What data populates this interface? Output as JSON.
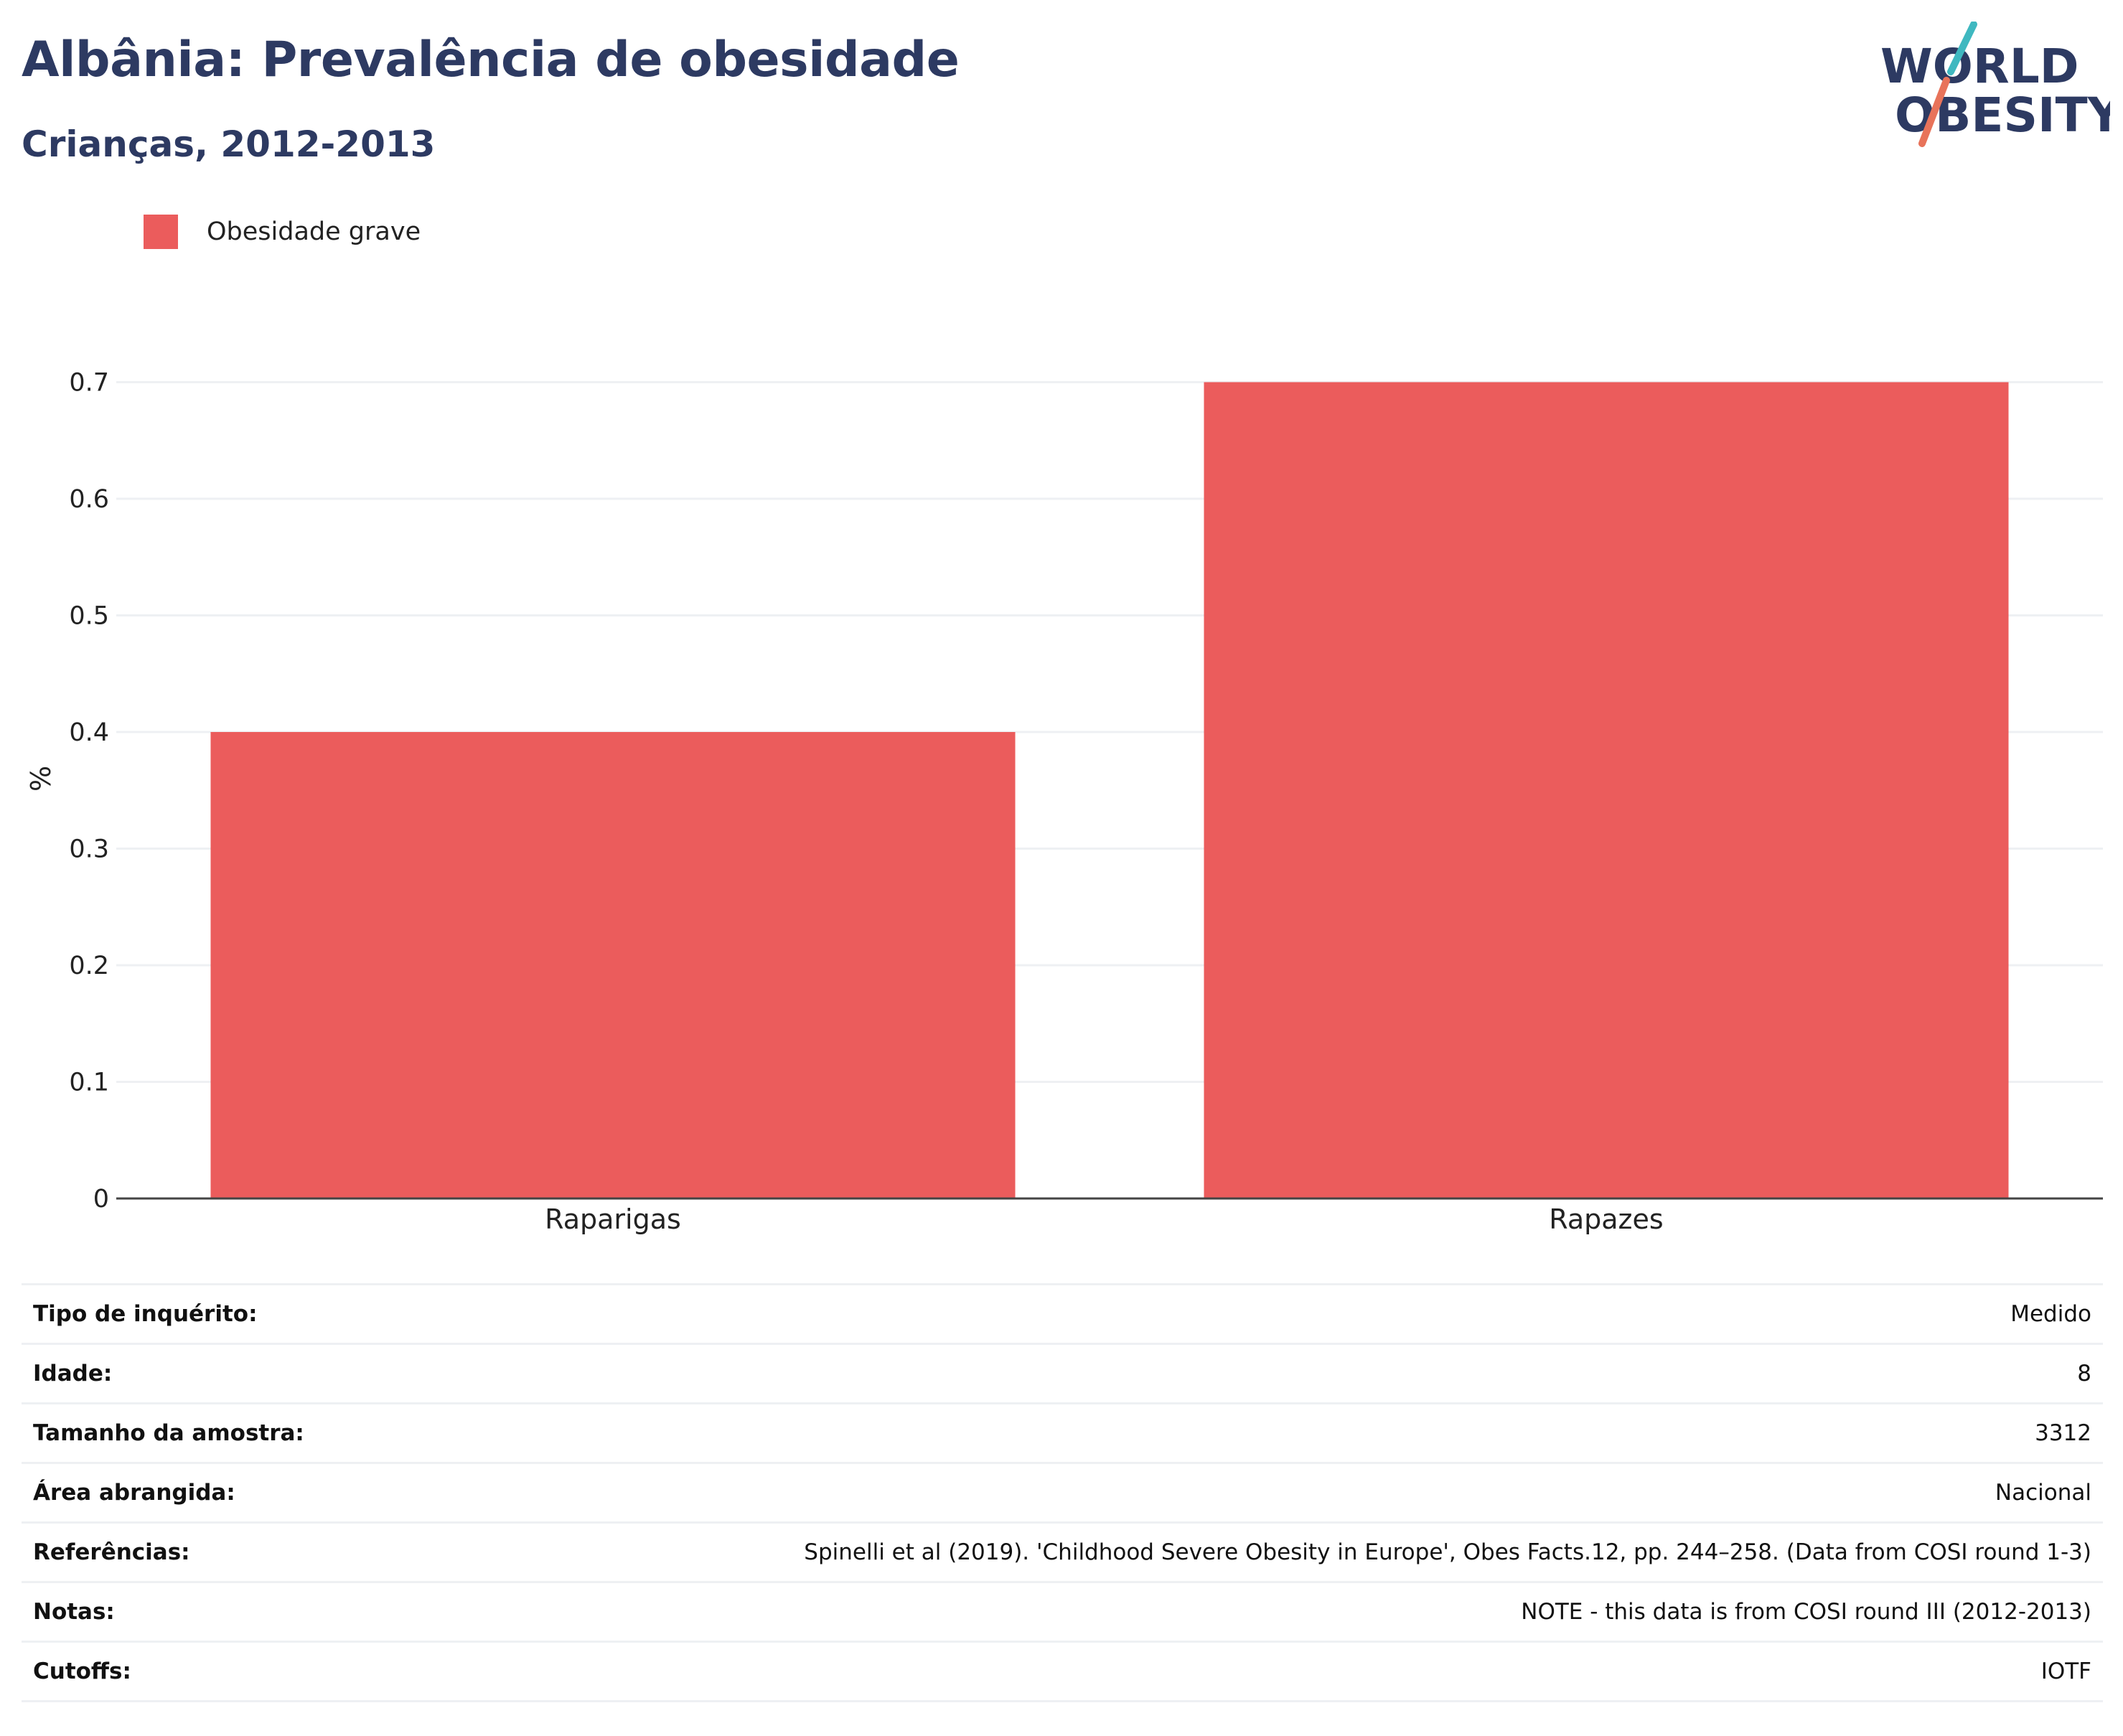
{
  "header": {
    "title": "Albânia: Prevalência de obesidade",
    "subtitle": "Crianças, 2012-2013"
  },
  "logo": {
    "line1": "WORLD",
    "line2": "OBESITY"
  },
  "colors": {
    "bar": "#eb5c5c",
    "title": "#2d3a62",
    "logo_teal": "#3fb8c0",
    "logo_coral": "#e8735a",
    "grid": "#eef0f3"
  },
  "chart_data": {
    "type": "bar",
    "categories": [
      "Raparigas",
      "Rapazes"
    ],
    "series": [
      {
        "name": "Obesidade grave",
        "values": [
          0.4,
          0.7
        ]
      }
    ],
    "ylabel": "%",
    "ylim": [
      0,
      0.72
    ],
    "yticks": [
      "0",
      "0.1",
      "0.2",
      "0.3",
      "0.4",
      "0.5",
      "0.6",
      "0.7"
    ],
    "grid": true,
    "legend": "top-left"
  },
  "info": [
    {
      "key": "Tipo de inquérito:",
      "value": "Medido"
    },
    {
      "key": "Idade:",
      "value": "8"
    },
    {
      "key": "Tamanho da amostra:",
      "value": "3312"
    },
    {
      "key": "Área abrangida:",
      "value": "Nacional"
    },
    {
      "key": "Referências:",
      "value": "Spinelli et al (2019). 'Childhood Severe Obesity in Europe', Obes Facts.12, pp. 244–258. (Data from COSI round 1-3)"
    },
    {
      "key": "Notas:",
      "value": "NOTE - this data is from COSI round III (2012-2013)"
    },
    {
      "key": "Cutoffs:",
      "value": "IOTF"
    }
  ]
}
